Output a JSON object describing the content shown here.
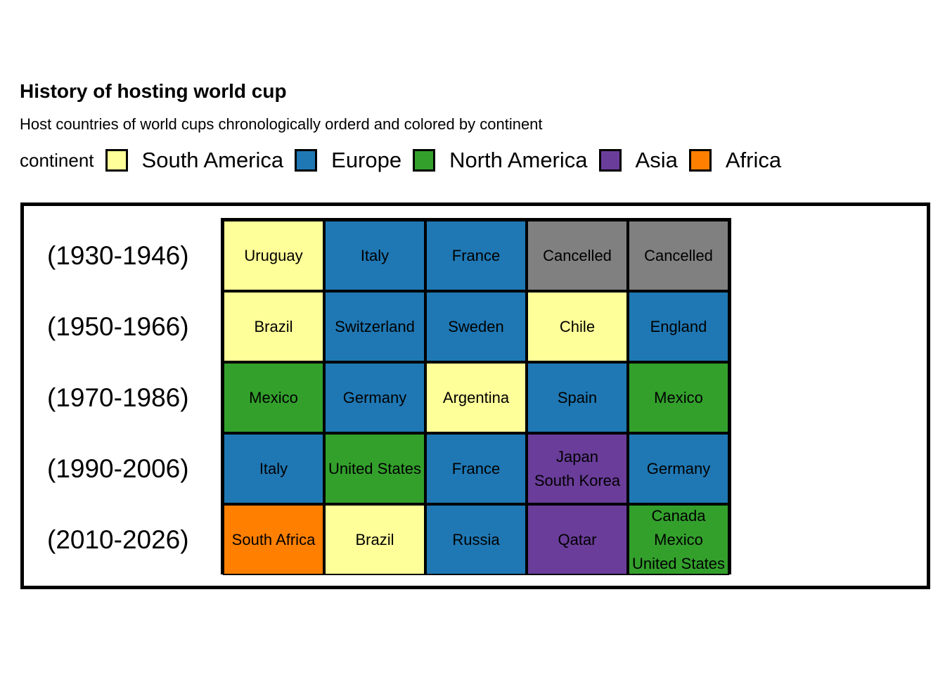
{
  "chart_data": {
    "type": "heatmap",
    "title": "History of hosting world cup",
    "subtitle": "Host countries of world cups chronologically orderd and colored by continent",
    "legend": {
      "title": "continent",
      "placement": "top",
      "entries": [
        {
          "name": "South America",
          "color": "#FFFF99"
        },
        {
          "name": "Europe",
          "color": "#1F78B4"
        },
        {
          "name": "North America",
          "color": "#33A02C"
        },
        {
          "name": "Asia",
          "color": "#6A3D9A"
        },
        {
          "name": "Africa",
          "color": "#FF7F00"
        }
      ]
    },
    "cancelled_color": "#808080",
    "rows": [
      "(1930-1946)",
      "(1950-1966)",
      "(1970-1986)",
      "(1990-2006)",
      "(2010-2026)"
    ],
    "cells": [
      [
        {
          "host": "Uruguay",
          "continent": "South America"
        },
        {
          "host": "Italy",
          "continent": "Europe"
        },
        {
          "host": "France",
          "continent": "Europe"
        },
        {
          "host": "Cancelled",
          "continent": null
        },
        {
          "host": "Cancelled",
          "continent": null
        }
      ],
      [
        {
          "host": "Brazil",
          "continent": "South America"
        },
        {
          "host": "Switzerland",
          "continent": "Europe"
        },
        {
          "host": "Sweden",
          "continent": "Europe"
        },
        {
          "host": "Chile",
          "continent": "South America"
        },
        {
          "host": "England",
          "continent": "Europe"
        }
      ],
      [
        {
          "host": "Mexico",
          "continent": "North America"
        },
        {
          "host": "Germany",
          "continent": "Europe"
        },
        {
          "host": "Argentina",
          "continent": "South America"
        },
        {
          "host": "Spain",
          "continent": "Europe"
        },
        {
          "host": "Mexico",
          "continent": "North America"
        }
      ],
      [
        {
          "host": "Italy",
          "continent": "Europe"
        },
        {
          "host": "United States",
          "continent": "North America"
        },
        {
          "host": "France",
          "continent": "Europe"
        },
        {
          "host": "Japan\nSouth Korea",
          "continent": "Asia"
        },
        {
          "host": "Germany",
          "continent": "Europe"
        }
      ],
      [
        {
          "host": "South Africa",
          "continent": "Africa"
        },
        {
          "host": "Brazil",
          "continent": "South America"
        },
        {
          "host": "Russia",
          "continent": "Europe"
        },
        {
          "host": "Qatar",
          "continent": "Asia"
        },
        {
          "host": "Canada\nMexico\nUnited States",
          "continent": "North America"
        }
      ]
    ]
  }
}
